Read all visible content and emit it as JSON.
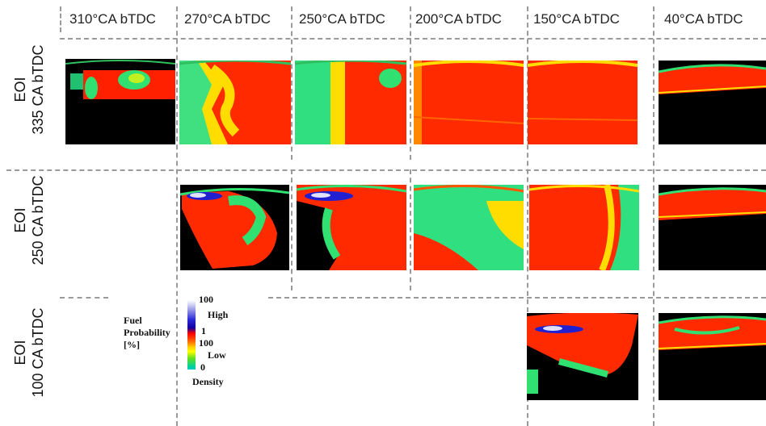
{
  "columns": [
    "310°CA bTDC",
    "270°CA bTDC",
    "250°CA bTDC",
    "200°CA bTDC",
    "150°CA bTDC",
    "40°CA bTDC"
  ],
  "rows": [
    {
      "line1": "EOI",
      "line2": "335 CA bTDC"
    },
    {
      "line1": "EOI",
      "line2": "250 CA bTDC"
    },
    {
      "line1": "EOI",
      "line2": "100 CA bTDC"
    }
  ],
  "legend": {
    "title_line1": "Fuel",
    "title_line2": "Probability",
    "title_line3": "[%]",
    "tick_top": "100",
    "label_high": "High",
    "tick_one": "1",
    "tick_mid": "100",
    "label_low": "Low",
    "tick_zero": "0",
    "label_density": "Density"
  },
  "colors": {
    "high_fuel": "#ff1a00",
    "mid_fuel": "#ffdd00",
    "low_fuel": "#22e05a",
    "liquid": "#2020d0",
    "background": "#000000"
  }
}
